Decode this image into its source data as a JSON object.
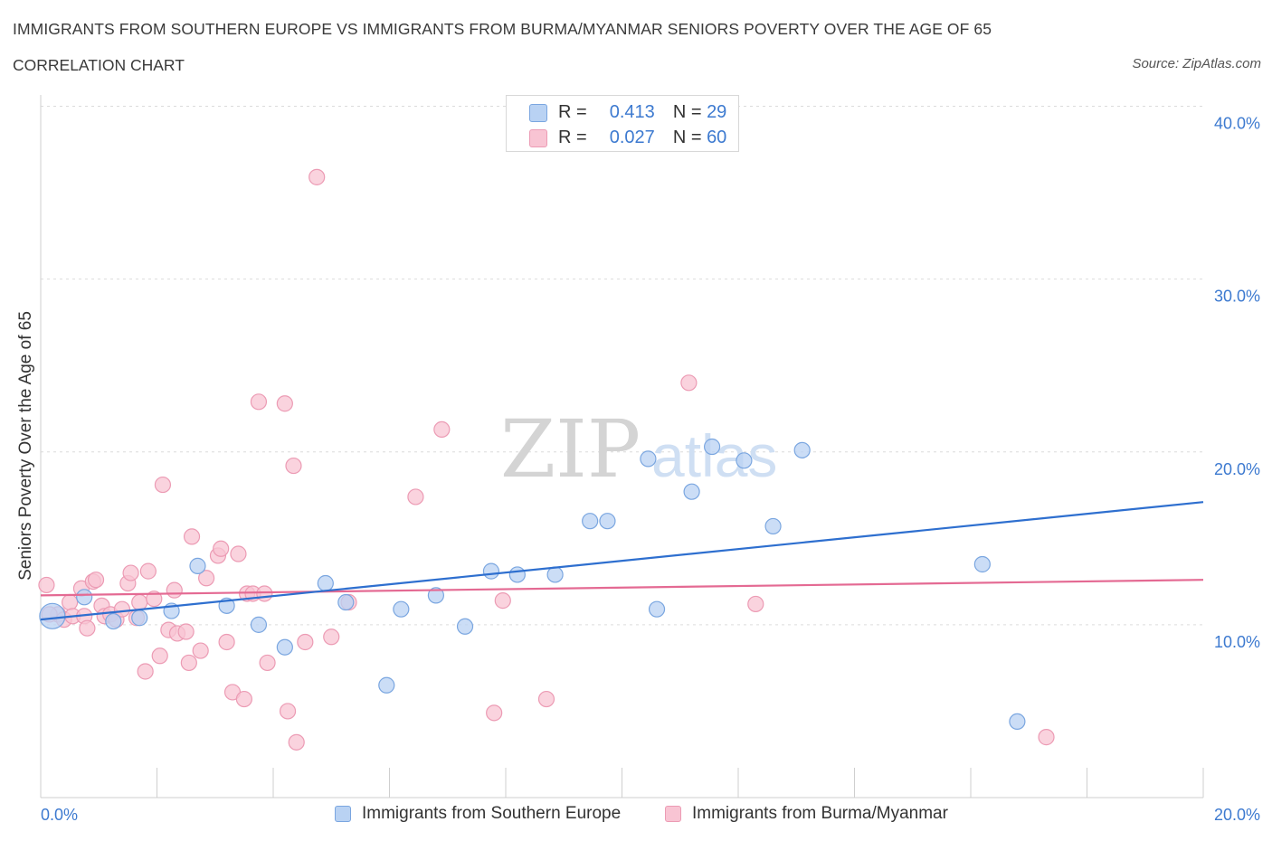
{
  "title": "IMMIGRANTS FROM SOUTHERN EUROPE VS IMMIGRANTS FROM BURMA/MYANMAR SENIORS POVERTY OVER THE AGE OF 65",
  "subtitle": "CORRELATION CHART",
  "source": "Source: ZipAtlas.com",
  "watermark": {
    "zip": "ZIP",
    "atlas": "atlas"
  },
  "colors": {
    "blue_fill": "#b9d2f3",
    "blue_stroke": "#7aa6e0",
    "blue_line": "#2e6fcf",
    "pink_fill": "#f8c4d3",
    "pink_stroke": "#ec9bb4",
    "pink_line": "#e46a93",
    "grid": "#dcdcdc",
    "axis_label": "#3d7ad0"
  },
  "stat_legend": [
    {
      "r_label": "R =",
      "r_value": "0.413",
      "n_label": "N =",
      "n_value": "29",
      "series": "blue"
    },
    {
      "r_label": "R =",
      "r_value": "0.027",
      "n_label": "N =",
      "n_value": "60",
      "series": "pink"
    }
  ],
  "chart_data": {
    "type": "scatter",
    "title": "IMMIGRANTS FROM SOUTHERN EUROPE VS IMMIGRANTS FROM BURMA/MYANMAR SENIORS POVERTY OVER THE AGE OF 65",
    "xlabel": "",
    "ylabel": "Seniors Poverty Over the Age of 65",
    "xlim": [
      0,
      20
    ],
    "ylim": [
      0,
      40
    ],
    "x_tick_labels": [
      "0.0%",
      "20.0%"
    ],
    "y_ticks": [
      10,
      20,
      30,
      40
    ],
    "y_tick_labels": [
      "10.0%",
      "20.0%",
      "30.0%",
      "40.0%"
    ],
    "grid": true,
    "legend": "bottom-center",
    "series": [
      {
        "name": "Immigrants from Southern Europe",
        "color": "blue",
        "trend": {
          "x": [
            0,
            20
          ],
          "y": [
            10.3,
            17.1
          ]
        },
        "points": [
          [
            0.2,
            10.5
          ],
          [
            0.75,
            11.6
          ],
          [
            1.25,
            10.2
          ],
          [
            1.7,
            10.4
          ],
          [
            2.25,
            10.8
          ],
          [
            2.7,
            13.4
          ],
          [
            3.2,
            11.1
          ],
          [
            3.75,
            10.0
          ],
          [
            4.2,
            8.7
          ],
          [
            4.9,
            12.4
          ],
          [
            5.25,
            11.3
          ],
          [
            5.95,
            6.5
          ],
          [
            6.2,
            10.9
          ],
          [
            6.8,
            11.7
          ],
          [
            7.3,
            9.9
          ],
          [
            7.75,
            13.1
          ],
          [
            8.2,
            12.9
          ],
          [
            8.85,
            12.9
          ],
          [
            9.45,
            16.0
          ],
          [
            9.75,
            16.0
          ],
          [
            10.45,
            19.6
          ],
          [
            10.6,
            10.9
          ],
          [
            11.2,
            17.7
          ],
          [
            11.55,
            20.3
          ],
          [
            12.1,
            19.5
          ],
          [
            12.6,
            15.7
          ],
          [
            13.1,
            20.1
          ],
          [
            16.2,
            13.5
          ],
          [
            16.8,
            4.4
          ]
        ]
      },
      {
        "name": "Immigrants from Burma/Myanmar",
        "color": "pink",
        "trend": {
          "x": [
            0,
            20
          ],
          "y": [
            11.7,
            12.6
          ]
        },
        "points": [
          [
            0.1,
            12.3
          ],
          [
            0.3,
            10.6
          ],
          [
            0.4,
            10.3
          ],
          [
            0.5,
            11.3
          ],
          [
            0.55,
            10.5
          ],
          [
            0.7,
            12.1
          ],
          [
            0.75,
            10.5
          ],
          [
            0.8,
            9.8
          ],
          [
            0.9,
            12.5
          ],
          [
            0.95,
            12.6
          ],
          [
            1.05,
            11.1
          ],
          [
            1.1,
            10.5
          ],
          [
            1.2,
            10.6
          ],
          [
            1.3,
            10.3
          ],
          [
            1.4,
            10.9
          ],
          [
            1.5,
            12.4
          ],
          [
            1.55,
            13.0
          ],
          [
            1.65,
            10.4
          ],
          [
            1.7,
            11.3
          ],
          [
            1.8,
            7.3
          ],
          [
            1.85,
            13.1
          ],
          [
            1.95,
            11.5
          ],
          [
            2.05,
            8.2
          ],
          [
            2.1,
            18.1
          ],
          [
            2.2,
            9.7
          ],
          [
            2.3,
            12.0
          ],
          [
            2.35,
            9.5
          ],
          [
            2.5,
            9.6
          ],
          [
            2.55,
            7.8
          ],
          [
            2.6,
            15.1
          ],
          [
            2.75,
            8.5
          ],
          [
            2.85,
            12.7
          ],
          [
            3.05,
            14.0
          ],
          [
            3.1,
            14.4
          ],
          [
            3.2,
            9.0
          ],
          [
            3.3,
            6.1
          ],
          [
            3.4,
            14.1
          ],
          [
            3.5,
            5.7
          ],
          [
            3.55,
            11.8
          ],
          [
            3.65,
            11.8
          ],
          [
            3.75,
            22.9
          ],
          [
            3.85,
            11.8
          ],
          [
            3.9,
            7.8
          ],
          [
            4.2,
            22.8
          ],
          [
            4.25,
            5.0
          ],
          [
            4.35,
            19.2
          ],
          [
            4.4,
            3.2
          ],
          [
            4.55,
            9.0
          ],
          [
            4.75,
            35.9
          ],
          [
            5.0,
            9.3
          ],
          [
            5.3,
            11.3
          ],
          [
            6.45,
            17.4
          ],
          [
            6.9,
            21.3
          ],
          [
            7.8,
            4.9
          ],
          [
            7.95,
            11.4
          ],
          [
            8.7,
            5.7
          ],
          [
            11.15,
            24.0
          ],
          [
            12.3,
            11.2
          ],
          [
            17.3,
            3.5
          ],
          [
            0.15,
            10.6
          ]
        ]
      }
    ]
  }
}
